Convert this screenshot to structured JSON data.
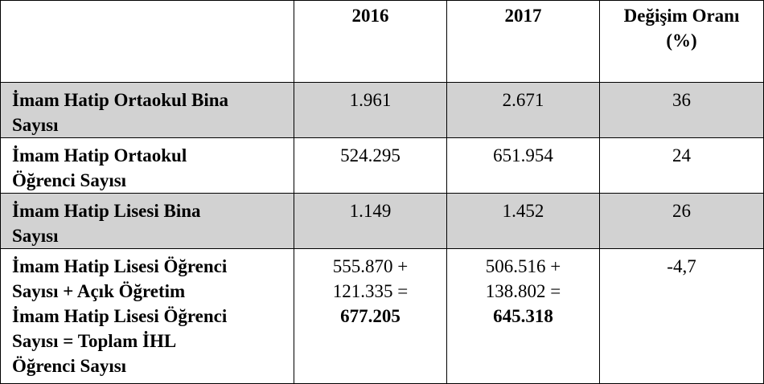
{
  "table": {
    "header": [
      "",
      "2016",
      "2017",
      [
        "Değişim Oranı",
        "(%)"
      ]
    ],
    "rows": [
      {
        "label": [
          "İmam Hatip Ortaokul Bina",
          "Sayısı"
        ],
        "shaded": true,
        "cells": [
          {
            "lines": [
              "1.961"
            ]
          },
          {
            "lines": [
              "2.671"
            ]
          },
          {
            "lines": [
              "36"
            ]
          }
        ]
      },
      {
        "label": [
          "İmam Hatip Ortaokul",
          "Öğrenci Sayısı"
        ],
        "shaded": false,
        "cells": [
          {
            "lines": [
              "524.295"
            ]
          },
          {
            "lines": [
              "651.954"
            ]
          },
          {
            "lines": [
              "24"
            ]
          }
        ]
      },
      {
        "label": [
          "İmam Hatip Lisesi Bina",
          "Sayısı"
        ],
        "shaded": true,
        "cells": [
          {
            "lines": [
              "1.149"
            ]
          },
          {
            "lines": [
              "1.452"
            ]
          },
          {
            "lines": [
              "26"
            ]
          }
        ]
      },
      {
        "label": [
          "İmam Hatip Lisesi Öğrenci",
          "Sayısı + Açık Öğretim",
          "İmam Hatip Lisesi Öğrenci",
          "Sayısı = Toplam İHL",
          "Öğrenci Sayısı"
        ],
        "shaded": false,
        "cells": [
          {
            "lines": [
              "555.870 +",
              "121.335 ="
            ],
            "total": "677.205"
          },
          {
            "lines": [
              "506.516 +",
              "138.802 ="
            ],
            "total": "645.318"
          },
          {
            "lines": [
              "-4,7"
            ]
          }
        ]
      }
    ]
  }
}
